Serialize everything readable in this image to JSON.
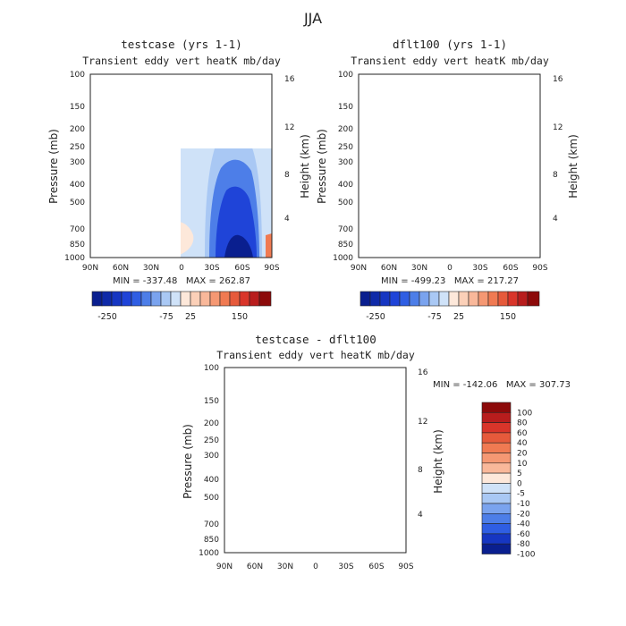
{
  "figure_title": "JJA",
  "colors": {
    "neg_deep": "#0a1f8f",
    "neg_strong": "#1f44d8",
    "neg_mid": "#4d7ee8",
    "neg_light": "#a9c8f4",
    "neg_pale": "#cfe2f8",
    "pos_pale": "#fde8da",
    "pos_light": "#f9b89a",
    "pos_mid": "#f07a52",
    "pos_strong": "#d9352a",
    "pos_deep": "#8c0a0a"
  },
  "chart_data": [
    {
      "type": "heatmap",
      "id": "testcase",
      "title": "testcase (yrs 1-1)",
      "subtitle": "Transient eddy vert heatK mb/day",
      "xlabel": "",
      "ylabel": "Pressure (mb)",
      "ylabel_right": "Height (km)",
      "x_ticks": [
        "90N",
        "60N",
        "30N",
        "0",
        "30S",
        "60S",
        "90S"
      ],
      "y_ticks": [
        "100",
        "150",
        "200",
        "250",
        "300",
        "400",
        "500",
        "700",
        "850",
        "1000"
      ],
      "y_ticks_right": [
        "16",
        "12",
        "8",
        "4"
      ],
      "xlim": [
        90,
        -90
      ],
      "ylim": [
        1000,
        100
      ],
      "stats": "MIN = -337.48   MAX = 262.87",
      "colorbar_labels": [
        "-250",
        "-75",
        "25",
        "150"
      ]
    },
    {
      "type": "heatmap",
      "id": "dflt100",
      "title": "dflt100 (yrs 1-1)",
      "subtitle": "Transient eddy vert heatK mb/day",
      "xlabel": "",
      "ylabel": "Pressure (mb)",
      "ylabel_right": "Height (km)",
      "x_ticks": [
        "90N",
        "60N",
        "30N",
        "0",
        "30S",
        "60S",
        "90S"
      ],
      "y_ticks": [
        "100",
        "150",
        "200",
        "250",
        "300",
        "400",
        "500",
        "700",
        "850",
        "1000"
      ],
      "y_ticks_right": [
        "16",
        "12",
        "8",
        "4"
      ],
      "xlim": [
        90,
        -90
      ],
      "ylim": [
        1000,
        100
      ],
      "stats": "MIN = -499.23   MAX = 217.27",
      "colorbar_labels": [
        "-250",
        "-75",
        "25",
        "150"
      ]
    },
    {
      "type": "heatmap",
      "id": "diff",
      "title": "testcase - dflt100",
      "subtitle": "Transient eddy vert heatK mb/day",
      "xlabel": "",
      "ylabel": "Pressure (mb)",
      "ylabel_right": "Height (km)",
      "x_ticks": [
        "90N",
        "60N",
        "30N",
        "0",
        "30S",
        "60S",
        "90S"
      ],
      "y_ticks": [
        "100",
        "150",
        "200",
        "250",
        "300",
        "400",
        "500",
        "700",
        "850",
        "1000"
      ],
      "y_ticks_right": [
        "16",
        "12",
        "8",
        "4"
      ],
      "xlim": [
        90,
        -90
      ],
      "ylim": [
        1000,
        100
      ],
      "stats": "MIN = -142.06   MAX = 307.73",
      "colorbar_labels": [
        "100",
        "80",
        "60",
        "40",
        "20",
        "10",
        "5",
        "0",
        "-5",
        "-10",
        "-20",
        "-40",
        "-60",
        "-80",
        "-100"
      ]
    }
  ]
}
